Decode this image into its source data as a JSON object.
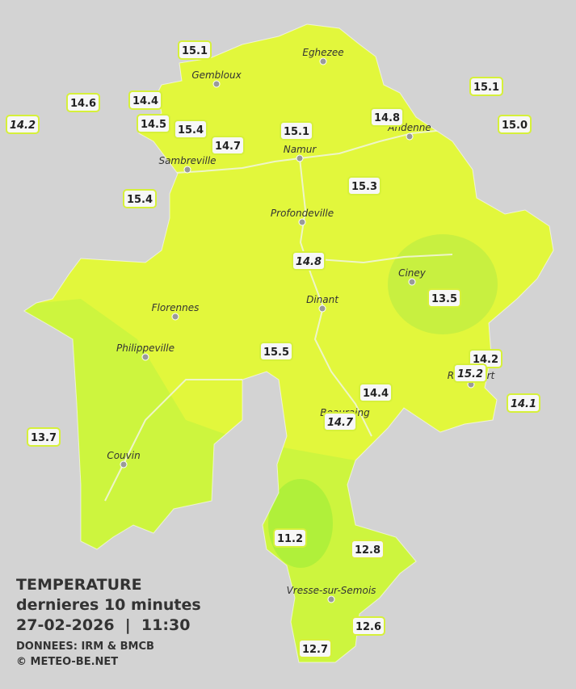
{
  "stations": [
    {
      "temp": "15.1",
      "italic": false
    },
    {
      "temp": "14.6",
      "italic": false
    },
    {
      "temp": "14.4",
      "italic": false
    },
    {
      "temp": "14.2",
      "italic": true
    },
    {
      "temp": "14.5",
      "italic": false
    },
    {
      "temp": "15.4",
      "italic": false
    },
    {
      "temp": "14.7",
      "italic": false
    },
    {
      "temp": "15.1",
      "italic": false
    },
    {
      "temp": "14.8",
      "italic": false
    },
    {
      "temp": "15.1",
      "italic": false
    },
    {
      "temp": "15.0",
      "italic": false
    },
    {
      "temp": "15.3",
      "italic": false
    },
    {
      "temp": "15.4",
      "italic": false
    },
    {
      "temp": "14.8",
      "italic": true
    },
    {
      "temp": "13.5",
      "italic": false
    },
    {
      "temp": "15.5",
      "italic": false
    },
    {
      "temp": "14.2",
      "italic": false
    },
    {
      "temp": "15.2",
      "italic": true
    },
    {
      "temp": "14.1",
      "italic": true
    },
    {
      "temp": "14.4",
      "italic": false
    },
    {
      "temp": "14.7",
      "italic": true
    },
    {
      "temp": "13.7",
      "italic": false
    },
    {
      "temp": "11.2",
      "italic": false
    },
    {
      "temp": "12.8",
      "italic": false
    },
    {
      "temp": "12.6",
      "italic": false
    },
    {
      "temp": "12.7",
      "italic": false
    }
  ],
  "cities": [
    {
      "name": "Eghezee"
    },
    {
      "name": "Gembloux"
    },
    {
      "name": "Andenne"
    },
    {
      "name": "Namur"
    },
    {
      "name": "Sambreville"
    },
    {
      "name": "Profondeville"
    },
    {
      "name": "Ciney"
    },
    {
      "name": "Dinant"
    },
    {
      "name": "Florennes"
    },
    {
      "name": "Philippeville"
    },
    {
      "name": "Beauraing"
    },
    {
      "name": "Rochefort"
    },
    {
      "name": "Couvin"
    },
    {
      "name": "Vresse-sur-Semois"
    }
  ],
  "legend": {
    "title": "TEMPERATURE",
    "subtitle": "dernieres 10 minutes",
    "timestamp": "27-02-2026  |  11:30",
    "source": "DONNEES: IRM & BMCB",
    "copyright": "© METEO-BE.NET"
  }
}
